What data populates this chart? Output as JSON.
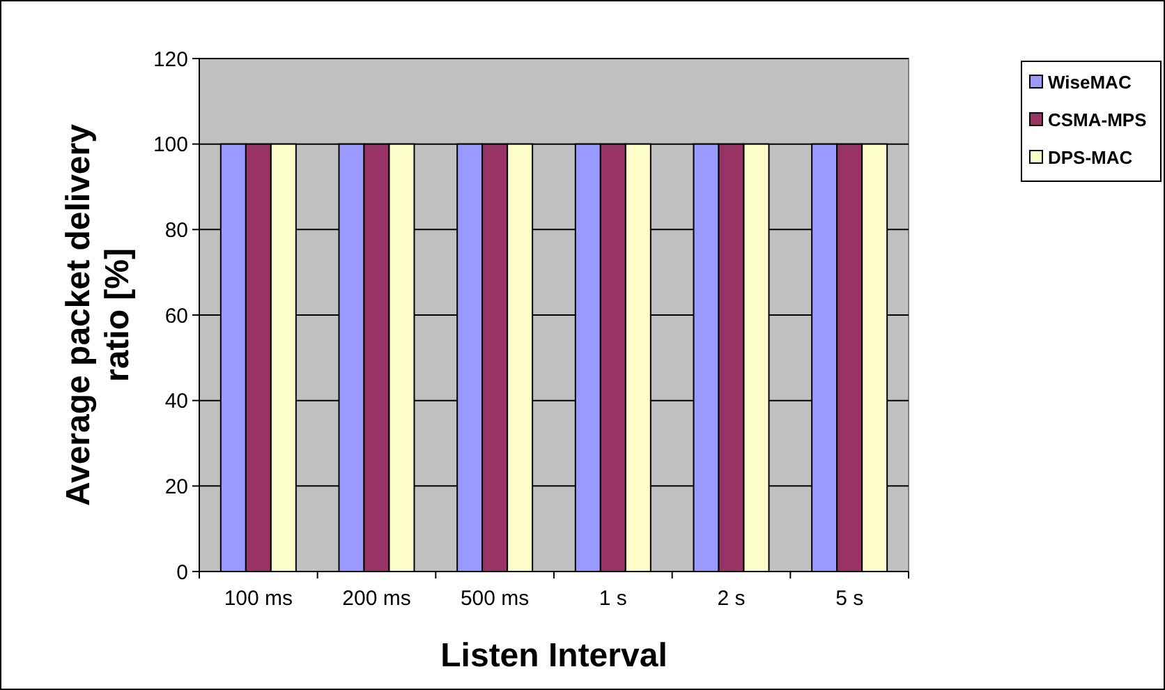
{
  "chart_data": {
    "type": "bar",
    "xlabel": "Listen Interval",
    "ylabel": "Average packet delivery ratio [%]",
    "categories": [
      "100 ms",
      "200 ms",
      "500 ms",
      "1 s",
      "2 s",
      "5 s"
    ],
    "series": [
      {
        "name": "WiseMAC",
        "color": "#9999ff",
        "values": [
          100,
          100,
          100,
          100,
          100,
          100
        ]
      },
      {
        "name": "CSMA-MPS",
        "color": "#993366",
        "values": [
          100,
          100,
          100,
          100,
          100,
          100
        ]
      },
      {
        "name": "DPS-MAC",
        "color": "#ffffcc",
        "values": [
          100,
          100,
          100,
          100,
          100,
          100
        ]
      }
    ],
    "ylim": [
      0,
      120
    ],
    "yticks": [
      0,
      20,
      40,
      60,
      80,
      100,
      120
    ],
    "grid": "y",
    "legend": "right"
  }
}
